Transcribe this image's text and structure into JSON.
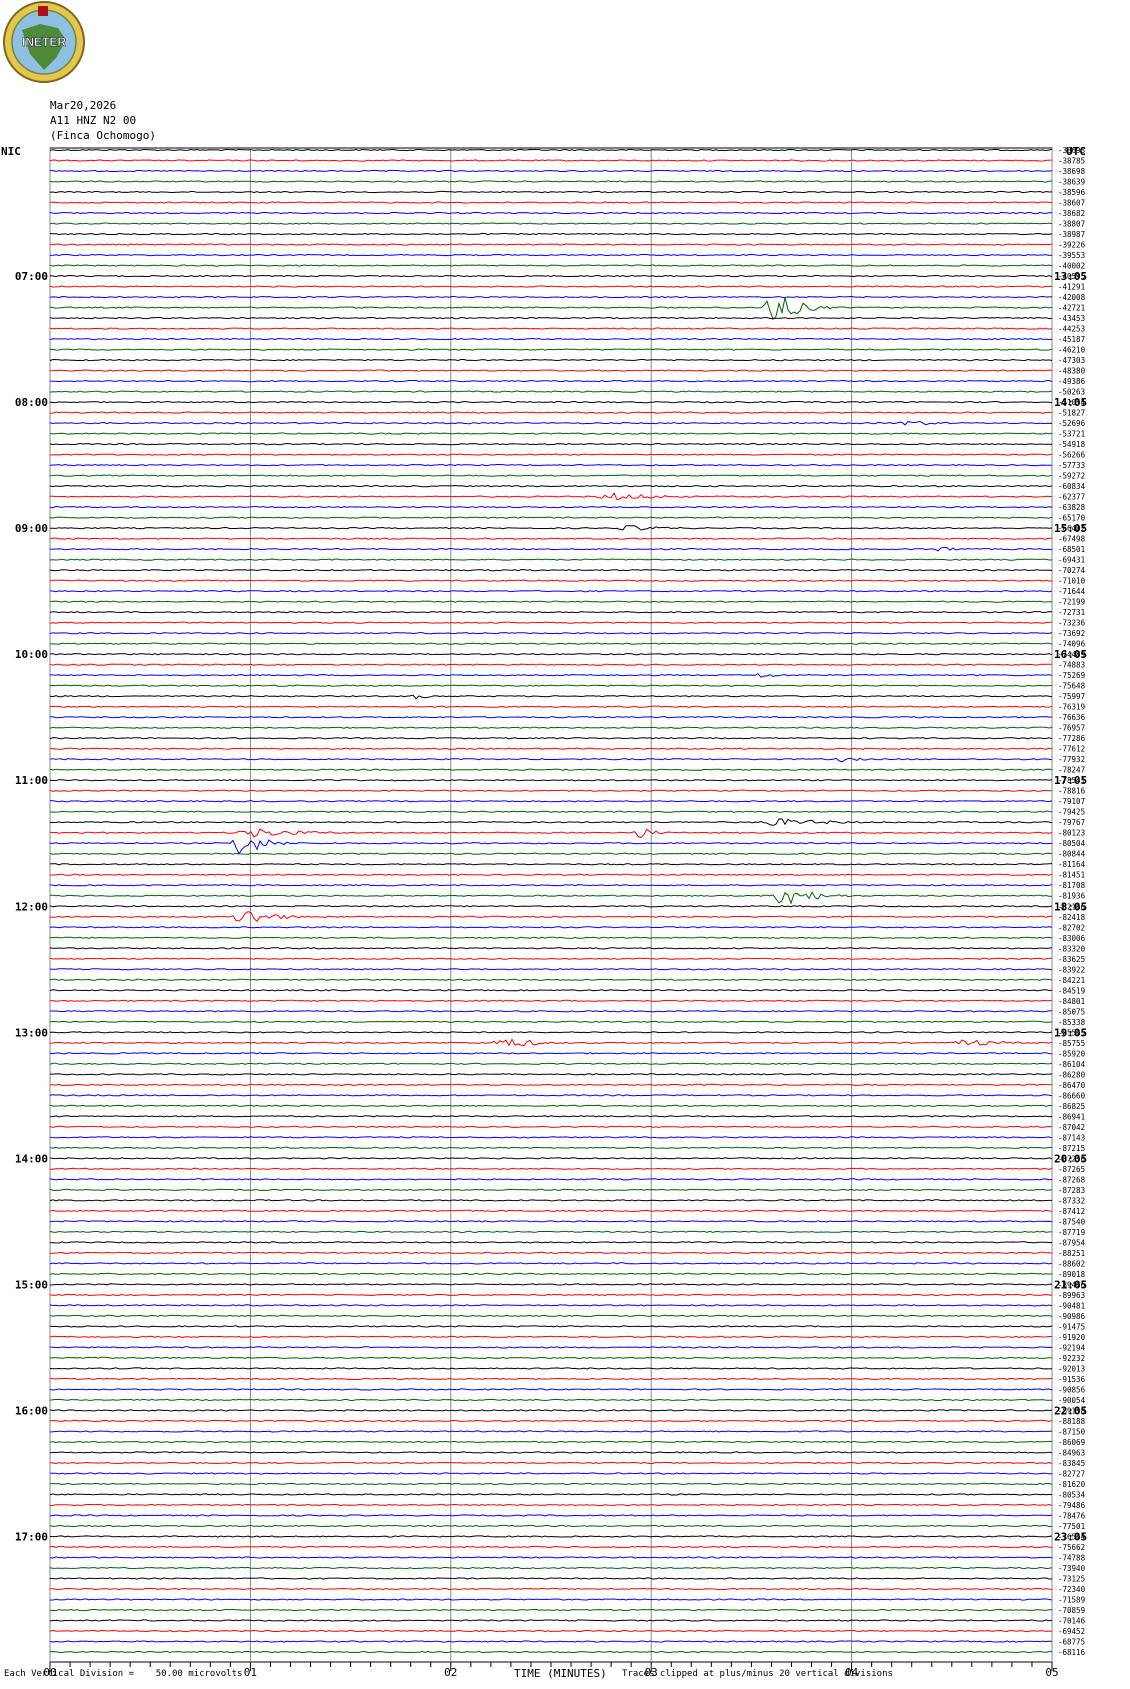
{
  "logo": {
    "text": "INETER"
  },
  "header": {
    "date": "Mar20,2026",
    "station": "A11 HNZ N2 00",
    "location": "(Finca Ochomogo)"
  },
  "left_zone_label": "NIC",
  "right_zone_label": "UTC",
  "footer": {
    "scale_note": "Each Vertical Division =    50.00 microvolts",
    "clip_note": "Traces clipped at plus/minus 20 vertical divisions"
  },
  "chart_data": {
    "type": "line",
    "title": "",
    "xlabel": "TIME (MINUTES)",
    "ylabel": "",
    "xlim": [
      0,
      5
    ],
    "x_ticks": [
      "00",
      "01",
      "02",
      "03",
      "04",
      "05"
    ],
    "left_time_labels": [
      "07:00",
      "08:00",
      "09:00",
      "10:00",
      "11:00",
      "12:00",
      "13:00",
      "14:00",
      "15:00",
      "16:00",
      "17:00"
    ],
    "right_time_labels": [
      "13:05",
      "14:05",
      "15:05",
      "16:05",
      "17:05",
      "18:05",
      "19:05",
      "20:05",
      "21:05",
      "22:05",
      "23:05"
    ],
    "trace_colors": [
      "#000000",
      "#ff0000",
      "#0000ff",
      "#006400"
    ],
    "grid": true,
    "trace_offsets": [
      -38693,
      -38785,
      -38698,
      -38639,
      -38596,
      -38607,
      -38682,
      -38807,
      -38987,
      -39226,
      -39553,
      -40002,
      -40595,
      -41291,
      -42008,
      -42721,
      -43453,
      -44253,
      -45187,
      -46210,
      -47303,
      -48380,
      -49386,
      -50263,
      -51054,
      -51827,
      -52696,
      -53721,
      -54918,
      -56266,
      -57733,
      -59272,
      -60834,
      -62377,
      -63828,
      -65170,
      -66402,
      -67498,
      -68501,
      -69431,
      -70274,
      -71010,
      -71644,
      -72199,
      -72731,
      -73236,
      -73692,
      -74096,
      -74489,
      -74883,
      -75269,
      -75648,
      -75997,
      -76319,
      -76636,
      -76957,
      -77286,
      -77612,
      -77932,
      -78247,
      -78541,
      -78816,
      -79107,
      -79425,
      -79767,
      -80123,
      -80504,
      -80844,
      -81164,
      -81451,
      -81708,
      -81936,
      -82166,
      -82418,
      -82702,
      -83006,
      -83320,
      -83625,
      -83922,
      -84221,
      -84519,
      -84801,
      -85075,
      -85338,
      -85565,
      -85755,
      -85920,
      -86104,
      -86280,
      -86470,
      -86660,
      -86825,
      -86941,
      -87042,
      -87143,
      -87215,
      -87250,
      -87265,
      -87268,
      -87283,
      -87332,
      -87412,
      -87540,
      -87719,
      -87954,
      -88251,
      -88602,
      -89018,
      -89466,
      -89963,
      -90481,
      -90986,
      -91475,
      -91920,
      -92194,
      -92232,
      -92013,
      -91536,
      -90856,
      -90054,
      -89158,
      -88188,
      -87150,
      -86069,
      -84963,
      -83845,
      -82727,
      -81620,
      -80534,
      -79486,
      -78476,
      -77501,
      -76564,
      -75662,
      -74788,
      -73940,
      -73125,
      -72340,
      -71589,
      -70859,
      -70146,
      -69452,
      -68775,
      -68116
    ],
    "events": [
      {
        "trace": 15,
        "start_min": 3.55,
        "end_min": 3.9,
        "amplitude": 18
      },
      {
        "trace": 26,
        "start_min": 4.2,
        "end_min": 4.7,
        "amplitude": 3
      },
      {
        "trace": 33,
        "start_min": 2.7,
        "end_min": 3.4,
        "amplitude": 4
      },
      {
        "trace": 36,
        "start_min": 2.8,
        "end_min": 3.4,
        "amplitude": 3
      },
      {
        "trace": 38,
        "start_min": 4.4,
        "end_min": 4.7,
        "amplitude": 3
      },
      {
        "trace": 50,
        "start_min": 3.5,
        "end_min": 3.8,
        "amplitude": 3
      },
      {
        "trace": 52,
        "start_min": 1.8,
        "end_min": 2.0,
        "amplitude": 3
      },
      {
        "trace": 58,
        "start_min": 3.9,
        "end_min": 4.2,
        "amplitude": 3
      },
      {
        "trace": 64,
        "start_min": 3.5,
        "end_min": 4.3,
        "amplitude": 4
      },
      {
        "trace": 65,
        "start_min": 2.9,
        "end_min": 3.1,
        "amplitude": 8
      },
      {
        "trace": 65,
        "start_min": 0.9,
        "end_min": 1.6,
        "amplitude": 5
      },
      {
        "trace": 66,
        "start_min": 0.9,
        "end_min": 1.2,
        "amplitude": 16
      },
      {
        "trace": 71,
        "start_min": 3.6,
        "end_min": 4.0,
        "amplitude": 12
      },
      {
        "trace": 73,
        "start_min": 0.9,
        "end_min": 1.3,
        "amplitude": 10
      },
      {
        "trace": 85,
        "start_min": 2.2,
        "end_min": 2.6,
        "amplitude": 7
      },
      {
        "trace": 85,
        "start_min": 4.5,
        "end_min": 5.0,
        "amplitude": 4
      }
    ]
  }
}
